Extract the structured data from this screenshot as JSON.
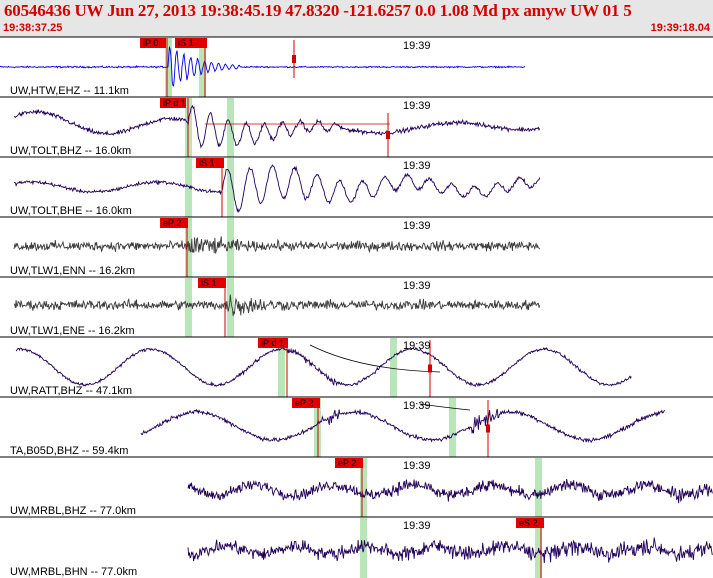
{
  "header": {
    "title": "60546436 UW Jun 27, 2013 19:38:45.19   47.8320 -121.6257  0.0 1.08 Md px amyw UW 01   5",
    "start_time": "19:38:37.25",
    "end_time": "19:39:18.04"
  },
  "colors": {
    "header_bg": "#e6e6e6",
    "header_text": "#d40000",
    "pick_box": "#e00000",
    "pick_window": "#b8e6b8",
    "trace_blue": "#0000ee",
    "trace_purple": "#22005a",
    "trace_gray": "#3c3c3c"
  },
  "panels": [
    {
      "label": "UW,HTW,EHZ -- 11.1km",
      "minute": "19:39",
      "color_key": "trace_blue",
      "picks": [
        "iP 0",
        "iS 1"
      ]
    },
    {
      "label": "UW,TOLT,BHZ -- 16.0km",
      "minute": "19:39",
      "color_key": "trace_purple",
      "picks": [
        "iP d 1"
      ]
    },
    {
      "label": "UW,TOLT,BHE -- 16.0km",
      "minute": "19:39",
      "color_key": "trace_purple",
      "picks": [
        "iS 1"
      ]
    },
    {
      "label": "UW,TLW1,ENN -- 16.2km",
      "minute": "19:39",
      "color_key": "trace_gray",
      "picks": [
        "eP 2"
      ]
    },
    {
      "label": "UW,TLW1,ENE -- 16.2km",
      "minute": "19:39",
      "color_key": "trace_gray",
      "picks": [
        "iS 1"
      ]
    },
    {
      "label": "UW,RATT,BHZ -- 47.1km",
      "minute": "19:39",
      "color_key": "trace_purple",
      "picks": [
        "iP d 1"
      ]
    },
    {
      "label": "TA,B05D,BHZ -- 59.4km",
      "minute": "19:39",
      "color_key": "trace_purple",
      "picks": [
        "eP 2"
      ]
    },
    {
      "label": "UW,MRBL,BHZ -- 77.0km",
      "minute": "19:39",
      "color_key": "trace_purple",
      "picks": [
        "eP 2"
      ]
    },
    {
      "label": "UW,MRBL,BHN -- 77.0km",
      "minute": "19:39",
      "color_key": "trace_purple",
      "picks": [
        "eS 2"
      ]
    }
  ]
}
